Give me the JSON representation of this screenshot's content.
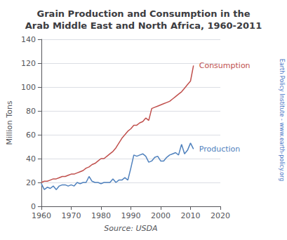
{
  "chart_data": {
    "type": "line",
    "title": "Grain Production and Consumption in the\nArab Middle East and North Africa, 1960-2011",
    "xlabel": "Source: USDA",
    "ylabel": "Million Tons",
    "annotations": [
      {
        "text": "Earth Policy Institute - www.earth-policy.org",
        "color": "#4472c4"
      }
    ],
    "x": [
      1960,
      1961,
      1962,
      1963,
      1964,
      1965,
      1966,
      1967,
      1968,
      1969,
      1970,
      1971,
      1972,
      1973,
      1974,
      1975,
      1976,
      1977,
      1978,
      1979,
      1980,
      1981,
      1982,
      1983,
      1984,
      1985,
      1986,
      1987,
      1988,
      1989,
      1990,
      1991,
      1992,
      1993,
      1994,
      1995,
      1996,
      1997,
      1998,
      1999,
      2000,
      2001,
      2002,
      2003,
      2004,
      2005,
      2006,
      2007,
      2008,
      2009,
      2010,
      2011
    ],
    "series": [
      {
        "name": "Consumption",
        "color": "#c0504d",
        "values": [
          20,
          21,
          21,
          22,
          23,
          23,
          24,
          25,
          25,
          26,
          27,
          27,
          28,
          29,
          30,
          32,
          33,
          35,
          36,
          38,
          40,
          40,
          42,
          44,
          46,
          49,
          53,
          57,
          60,
          63,
          65,
          68,
          68,
          70,
          71,
          74,
          72,
          82,
          83,
          84,
          85,
          86,
          87,
          88,
          90,
          92,
          94,
          96,
          99,
          102,
          105,
          118
        ]
      },
      {
        "name": "Production",
        "color": "#4f81bd",
        "values": [
          19,
          14,
          16,
          15,
          17,
          14,
          17,
          18,
          18,
          17,
          18,
          17,
          20,
          19,
          20,
          20,
          25,
          21,
          20,
          20,
          19,
          20,
          20,
          20,
          23,
          20,
          22,
          22,
          24,
          22,
          32,
          43,
          42,
          43,
          44,
          42,
          37,
          38,
          41,
          42,
          38,
          38,
          41,
          43,
          44,
          45,
          43,
          52,
          44,
          47,
          53,
          48
        ]
      }
    ],
    "xlim": [
      1960,
      2020
    ],
    "xticks": [
      1960,
      1970,
      1980,
      1990,
      2000,
      2010,
      2020
    ],
    "ylim": [
      0,
      140
    ],
    "yticks": [
      0,
      20,
      40,
      60,
      80,
      100,
      120,
      140
    ],
    "grid": true
  }
}
